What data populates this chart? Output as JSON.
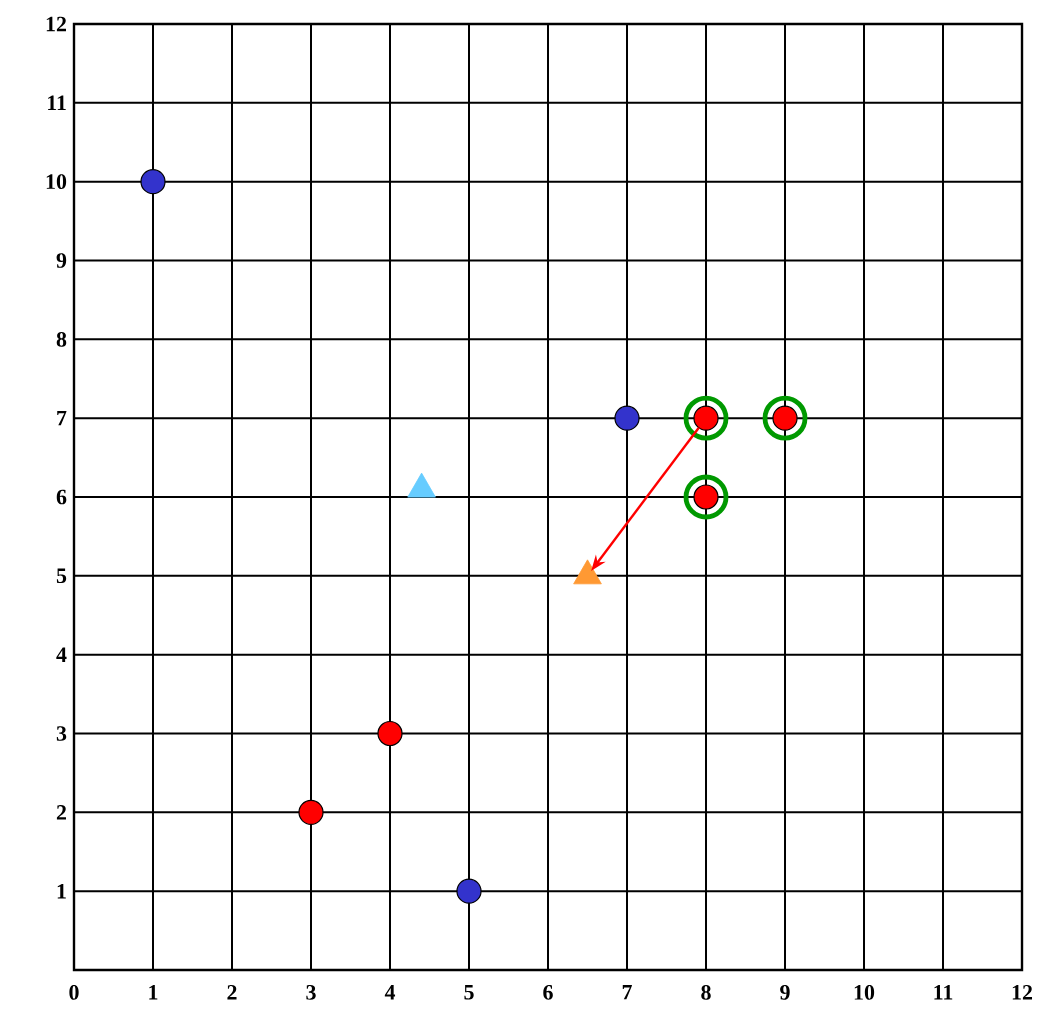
{
  "chart_data": {
    "type": "scatter",
    "xlim": [
      0,
      12
    ],
    "ylim": [
      0,
      12
    ],
    "xticks": [
      0,
      1,
      2,
      3,
      4,
      5,
      6,
      7,
      8,
      9,
      10,
      11,
      12
    ],
    "yticks": [
      1,
      2,
      3,
      4,
      5,
      6,
      7,
      8,
      9,
      10,
      11,
      12
    ],
    "grid": true,
    "series": [
      {
        "marker": "circle",
        "color": "#3333cc",
        "x": [
          1,
          7,
          5
        ],
        "values": [
          10,
          7,
          1
        ]
      },
      {
        "marker": "circle",
        "color": "#ff0000",
        "x": [
          3,
          4,
          8,
          8,
          9
        ],
        "values": [
          2,
          3,
          7,
          6,
          7
        ]
      },
      {
        "color": "#009900",
        "x": [
          8,
          8,
          9
        ],
        "values": [
          7,
          6,
          7
        ]
      },
      {
        "marker": "triangle",
        "color": "#66ccff",
        "x": [
          4.4
        ],
        "values": [
          6.1
        ]
      },
      {
        "marker": "triangle",
        "color": "#ff9933",
        "x": [
          6.5
        ],
        "values": [
          5
        ]
      }
    ]
  }
}
